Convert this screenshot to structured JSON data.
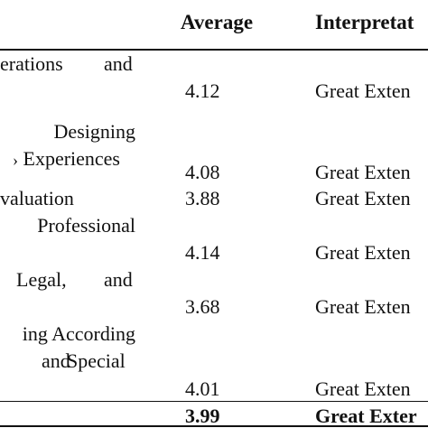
{
  "headers": {
    "average": "Average",
    "interpretation": "Interpretat"
  },
  "rows": [
    {
      "indicator_lines": [
        "erations",
        "and"
      ],
      "average": "4.12",
      "interpretation": "Great Exten"
    },
    {
      "indicator_lines": [
        "Designing",
        "Experiences"
      ],
      "average": "4.08",
      "interpretation": "Great Exten"
    },
    {
      "indicator_lines": [
        "valuation"
      ],
      "average": "3.88",
      "interpretation": "Great Exten"
    },
    {
      "indicator_lines": [
        "Professional"
      ],
      "average": "4.14",
      "interpretation": "Great Exten"
    },
    {
      "indicator_lines": [
        "Legal,",
        "and"
      ],
      "average": "3.68",
      "interpretation": "Great Exten"
    },
    {
      "indicator_lines": [
        "ing According",
        "and",
        "Special"
      ],
      "average": "4.01",
      "interpretation": "Great Exten"
    }
  ],
  "total": {
    "average": "3.99",
    "interpretation": "Great Exter"
  }
}
